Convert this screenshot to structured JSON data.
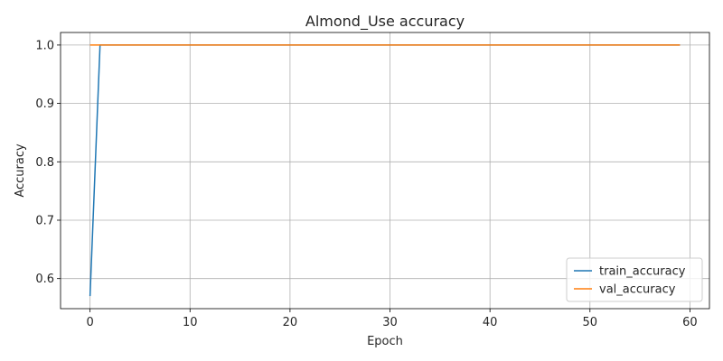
{
  "chart_data": {
    "type": "line",
    "title": "Almond_Use accuracy",
    "xlabel": "Epoch",
    "ylabel": "Accuracy",
    "xlim": [
      -2.95,
      61.95
    ],
    "ylim": [
      0.5485,
      1.0215
    ],
    "xticks": [
      0,
      10,
      20,
      30,
      40,
      50,
      60
    ],
    "yticks": [
      0.6,
      0.7,
      0.8,
      0.9,
      1.0
    ],
    "ytick_labels": [
      "0.6",
      "0.7",
      "0.8",
      "0.9",
      "1.0"
    ],
    "grid": true,
    "legend_position": "lower-right",
    "series": [
      {
        "name": "train_accuracy",
        "color": "#1f77b4",
        "x": [
          0,
          1,
          2,
          3,
          4,
          5,
          6,
          7,
          8,
          9,
          10,
          11,
          12,
          13,
          14,
          15,
          16,
          17,
          18,
          19,
          20,
          21,
          22,
          23,
          24,
          25,
          26,
          27,
          28,
          29,
          30,
          31,
          32,
          33,
          34,
          35,
          36,
          37,
          38,
          39,
          40,
          41,
          42,
          43,
          44,
          45,
          46,
          47,
          48,
          49,
          50,
          51,
          52,
          53,
          54,
          55,
          56,
          57,
          58,
          59
        ],
        "y": [
          0.57,
          1.0,
          1.0,
          1.0,
          1.0,
          1.0,
          1.0,
          1.0,
          1.0,
          1.0,
          1.0,
          1.0,
          1.0,
          1.0,
          1.0,
          1.0,
          1.0,
          1.0,
          1.0,
          1.0,
          1.0,
          1.0,
          1.0,
          1.0,
          1.0,
          1.0,
          1.0,
          1.0,
          1.0,
          1.0,
          1.0,
          1.0,
          1.0,
          1.0,
          1.0,
          1.0,
          1.0,
          1.0,
          1.0,
          1.0,
          1.0,
          1.0,
          1.0,
          1.0,
          1.0,
          1.0,
          1.0,
          1.0,
          1.0,
          1.0,
          1.0,
          1.0,
          1.0,
          1.0,
          1.0,
          1.0,
          1.0,
          1.0,
          1.0,
          1.0
        ]
      },
      {
        "name": "val_accuracy",
        "color": "#ff7f0e",
        "x": [
          0,
          1,
          2,
          3,
          4,
          5,
          6,
          7,
          8,
          9,
          10,
          11,
          12,
          13,
          14,
          15,
          16,
          17,
          18,
          19,
          20,
          21,
          22,
          23,
          24,
          25,
          26,
          27,
          28,
          29,
          30,
          31,
          32,
          33,
          34,
          35,
          36,
          37,
          38,
          39,
          40,
          41,
          42,
          43,
          44,
          45,
          46,
          47,
          48,
          49,
          50,
          51,
          52,
          53,
          54,
          55,
          56,
          57,
          58,
          59
        ],
        "y": [
          1.0,
          1.0,
          1.0,
          1.0,
          1.0,
          1.0,
          1.0,
          1.0,
          1.0,
          1.0,
          1.0,
          1.0,
          1.0,
          1.0,
          1.0,
          1.0,
          1.0,
          1.0,
          1.0,
          1.0,
          1.0,
          1.0,
          1.0,
          1.0,
          1.0,
          1.0,
          1.0,
          1.0,
          1.0,
          1.0,
          1.0,
          1.0,
          1.0,
          1.0,
          1.0,
          1.0,
          1.0,
          1.0,
          1.0,
          1.0,
          1.0,
          1.0,
          1.0,
          1.0,
          1.0,
          1.0,
          1.0,
          1.0,
          1.0,
          1.0,
          1.0,
          1.0,
          1.0,
          1.0,
          1.0,
          1.0,
          1.0,
          1.0,
          1.0,
          1.0
        ]
      }
    ]
  }
}
